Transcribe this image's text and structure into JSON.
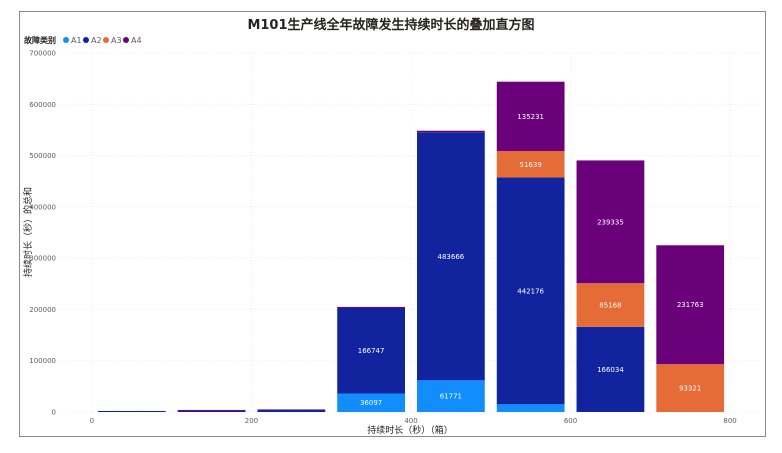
{
  "chart_data": {
    "type": "bar",
    "stacked": true,
    "title": "M101生产线全年故障发生持续时长的叠加直方图",
    "xlabel": "持续时长（秒）（箱）",
    "ylabel": "持续时长（秒）的总和",
    "legend": {
      "title": "故障类别",
      "position": "top-left"
    },
    "x_ticks": [
      0,
      200,
      400,
      600,
      800
    ],
    "y_ticks": [
      0,
      100000,
      200000,
      300000,
      400000,
      500000,
      600000,
      700000
    ],
    "ylim": [
      0,
      700000
    ],
    "xlim": [
      -40,
      840
    ],
    "bin_width": 100,
    "grid": true,
    "bins": [
      0,
      100,
      200,
      300,
      400,
      500,
      600,
      700,
      800
    ],
    "series": [
      {
        "name": "A1",
        "color": "#118dff",
        "values": [
          0,
          0,
          0,
          36097,
          61771,
          15000,
          0,
          0,
          0
        ]
      },
      {
        "name": "A2",
        "color": "#12239e",
        "values": [
          2000,
          2000,
          4000,
          166747,
          483666,
          442176,
          166034,
          0,
          0
        ]
      },
      {
        "name": "A3",
        "color": "#e66c37",
        "values": [
          0,
          0,
          0,
          0,
          0,
          51639,
          85168,
          93321,
          0
        ]
      },
      {
        "name": "A4",
        "color": "#6b007b",
        "values": [
          0,
          2000,
          1000,
          2000,
          3000,
          135231,
          239335,
          231763,
          0
        ]
      }
    ],
    "data_labels": [
      {
        "bin": 300,
        "series": "A1",
        "text": "36097"
      },
      {
        "bin": 300,
        "series": "A2",
        "text": "166747"
      },
      {
        "bin": 400,
        "series": "A1",
        "text": "61771"
      },
      {
        "bin": 400,
        "series": "A2",
        "text": "483666"
      },
      {
        "bin": 500,
        "series": "A2",
        "text": "442176"
      },
      {
        "bin": 500,
        "series": "A3",
        "text": "51639"
      },
      {
        "bin": 500,
        "series": "A4",
        "text": "135231"
      },
      {
        "bin": 600,
        "series": "A2",
        "text": "166034"
      },
      {
        "bin": 600,
        "series": "A3",
        "text": "85168"
      },
      {
        "bin": 600,
        "series": "A4",
        "text": "239335"
      },
      {
        "bin": 700,
        "series": "A3",
        "text": "93321"
      },
      {
        "bin": 700,
        "series": "A4",
        "text": "231763"
      }
    ]
  }
}
